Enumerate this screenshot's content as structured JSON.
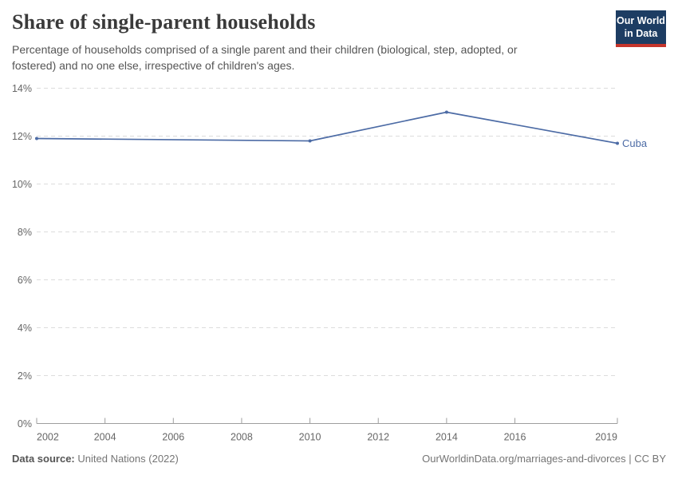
{
  "header": {
    "title": "Share of single-parent households",
    "subtitle": "Percentage of households comprised of a single parent and their children (biological, step, adopted, or fostered) and no one else, irrespective of children's ages.",
    "logo": {
      "line1": "Our World",
      "line2": "in Data"
    }
  },
  "chart_data": {
    "type": "line",
    "title": "Share of single-parent households",
    "xlabel": "",
    "ylabel": "",
    "xlim": [
      2002,
      2019
    ],
    "ylim": [
      0,
      14
    ],
    "grid": true,
    "legend_position": "end-of-line label",
    "x_ticks": [
      2002,
      2004,
      2006,
      2008,
      2010,
      2012,
      2014,
      2016,
      2019
    ],
    "y_ticks": [
      0,
      2,
      4,
      6,
      8,
      10,
      12,
      14
    ],
    "y_tick_suffix": "%",
    "series": [
      {
        "name": "Cuba",
        "color": "#4c6ba5",
        "x": [
          2002,
          2010,
          2014,
          2019
        ],
        "values": [
          11.9,
          11.8,
          13.0,
          11.7
        ]
      }
    ]
  },
  "footer": {
    "source_label": "Data source:",
    "source_value": "United Nations (2022)",
    "link": "OurWorldinData.org/marriages-and-divorces | CC BY"
  },
  "colors": {
    "grid": "#dcdcdc",
    "axis": "#9e9e9e",
    "tick_label": "#666666",
    "line": "#4c6ba5"
  }
}
